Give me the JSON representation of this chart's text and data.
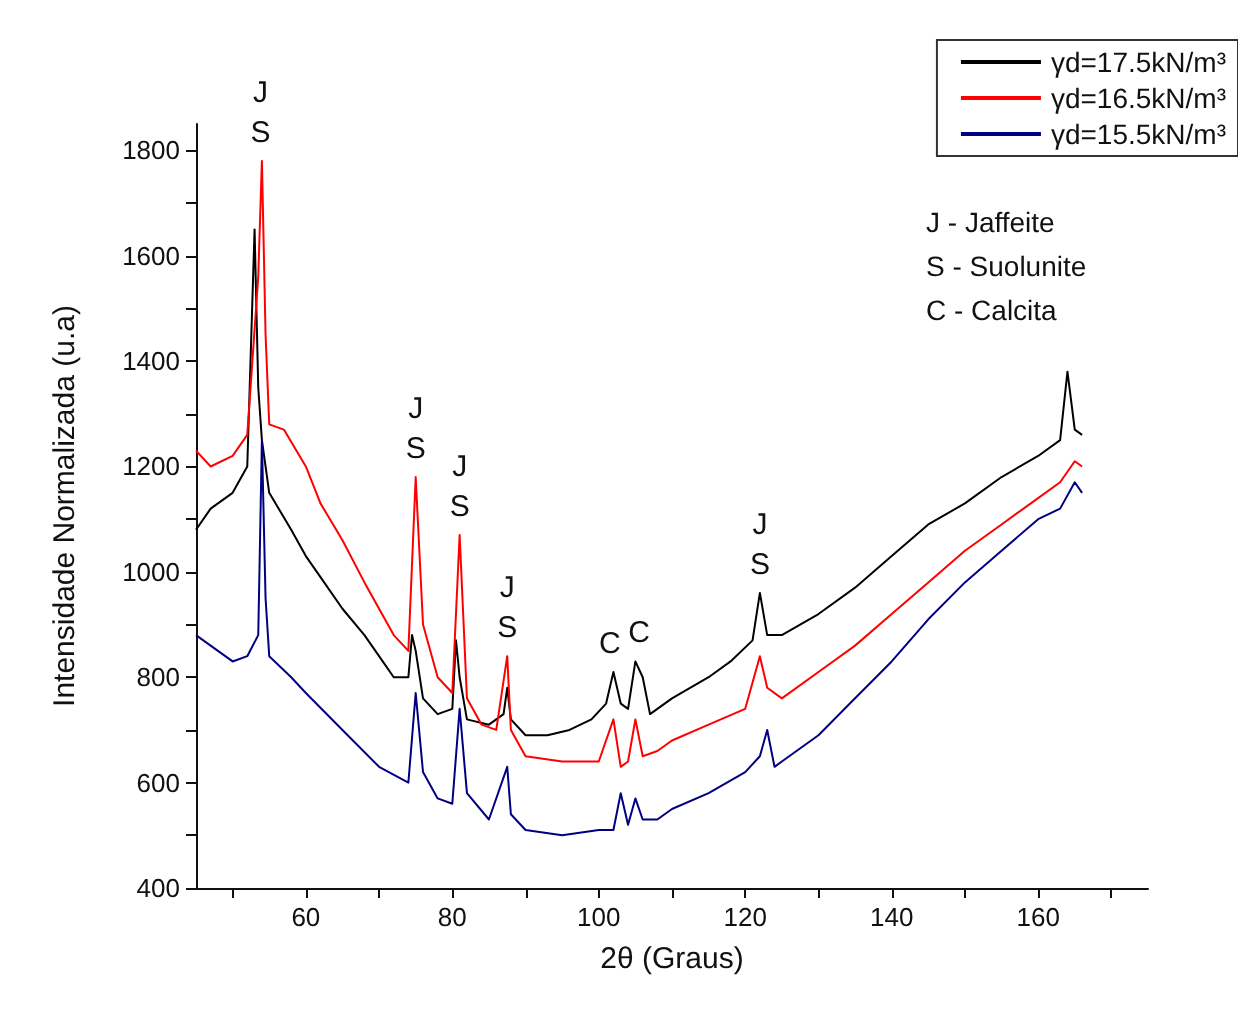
{
  "chart_data": {
    "type": "line",
    "xlabel": "2θ (Graus)",
    "ylabel": "Intensidade Normalizada (u.a)",
    "xlim": [
      45,
      175
    ],
    "xticks": [
      {
        "value": 50,
        "label": null
      },
      60,
      {
        "value": 70,
        "label": null
      },
      80,
      {
        "value": 90,
        "label": null
      },
      100,
      {
        "value": 110,
        "label": null
      },
      120,
      {
        "value": 130,
        "label": null
      },
      140,
      {
        "value": 150,
        "label": null
      },
      160,
      {
        "value": 170,
        "label": null
      }
    ],
    "ylim": [
      400,
      1850
    ],
    "yticks": [
      400,
      {
        "value": 500,
        "label": null
      },
      600,
      {
        "value": 700,
        "label": null
      },
      800,
      {
        "value": 900,
        "label": null
      },
      1000,
      {
        "value": 1100,
        "label": null
      },
      1200,
      {
        "value": 1300,
        "label": null
      },
      1400,
      {
        "value": 1500,
        "label": null
      },
      1600,
      {
        "value": 1700,
        "label": null
      },
      1800
    ],
    "grid": false,
    "legend": "top right",
    "marker": "none",
    "line_style": "solid",
    "series": [
      {
        "name": "γd=17.5kN/m³",
        "color": "#000000",
        "x": [
          45,
          47,
          50,
          52,
          53,
          53.5,
          54,
          55,
          58,
          60,
          62,
          65,
          68,
          70,
          72,
          74,
          74.5,
          75,
          76,
          78,
          80,
          80.5,
          81,
          82,
          85,
          87,
          87.5,
          88,
          90,
          93,
          96,
          99,
          101,
          102,
          103,
          104,
          105,
          106,
          107,
          110,
          115,
          118,
          121,
          122,
          123,
          125,
          130,
          135,
          140,
          145,
          150,
          155,
          160,
          163,
          164,
          165,
          166
        ],
        "values": [
          1080,
          1120,
          1150,
          1200,
          1650,
          1350,
          1250,
          1150,
          1080,
          1030,
          990,
          930,
          880,
          840,
          800,
          800,
          880,
          850,
          760,
          730,
          740,
          870,
          800,
          720,
          710,
          730,
          780,
          720,
          690,
          690,
          700,
          720,
          750,
          810,
          750,
          740,
          830,
          800,
          730,
          760,
          800,
          830,
          870,
          960,
          880,
          880,
          920,
          970,
          1030,
          1090,
          1130,
          1180,
          1220,
          1250,
          1380,
          1270,
          1260
        ]
      },
      {
        "name": "γd=16.5kN/m³",
        "color": "#ff0000",
        "x": [
          45,
          47,
          50,
          52,
          53.5,
          54,
          54.5,
          55,
          57,
          60,
          62,
          65,
          68,
          70,
          72,
          74,
          75,
          76,
          78,
          80,
          81,
          82,
          84,
          86,
          87.5,
          88,
          90,
          95,
          100,
          102,
          103,
          104,
          105,
          106,
          108,
          110,
          115,
          120,
          122,
          123,
          125,
          130,
          135,
          140,
          145,
          150,
          155,
          160,
          163,
          165,
          166
        ],
        "values": [
          1230,
          1200,
          1220,
          1260,
          1560,
          1780,
          1450,
          1280,
          1270,
          1200,
          1130,
          1060,
          980,
          930,
          880,
          850,
          1180,
          900,
          800,
          770,
          1070,
          760,
          710,
          700,
          840,
          700,
          650,
          640,
          640,
          720,
          630,
          640,
          720,
          650,
          660,
          680,
          710,
          740,
          840,
          780,
          760,
          810,
          860,
          920,
          980,
          1040,
          1090,
          1140,
          1170,
          1210,
          1200
        ]
      },
      {
        "name": "γd=15.5kN/m³",
        "color": "#000080",
        "x": [
          45,
          47,
          50,
          52,
          53.5,
          54,
          54.5,
          55,
          58,
          60,
          65,
          70,
          74,
          75,
          76,
          78,
          80,
          81,
          82,
          85,
          87.5,
          88,
          90,
          95,
          100,
          102,
          103,
          104,
          105,
          106,
          108,
          110,
          115,
          120,
          122,
          123,
          124,
          125,
          130,
          135,
          140,
          145,
          150,
          155,
          160,
          163,
          165,
          166
        ],
        "values": [
          880,
          860,
          830,
          840,
          880,
          1250,
          950,
          840,
          800,
          770,
          700,
          630,
          600,
          770,
          620,
          570,
          560,
          740,
          580,
          530,
          630,
          540,
          510,
          500,
          510,
          510,
          580,
          520,
          570,
          530,
          530,
          550,
          580,
          620,
          650,
          700,
          630,
          640,
          690,
          760,
          830,
          910,
          980,
          1040,
          1100,
          1120,
          1170,
          1150
        ]
      }
    ],
    "annotations": [
      {
        "text": "J\nS",
        "x": 53.8,
        "y": 1780
      },
      {
        "text": "J\nS",
        "x": 75,
        "y": 1180
      },
      {
        "text": "J\nS",
        "x": 81,
        "y": 1070
      },
      {
        "text": "J\nS",
        "x": 87.5,
        "y": 840
      },
      {
        "text": "J\nS",
        "x": 122,
        "y": 960
      },
      {
        "text": "C",
        "x": 101.5,
        "y": 810
      },
      {
        "text": "C",
        "x": 105.5,
        "y": 830
      },
      "J - Jaffeite\nS - Suolunite\nC - Calcita"
    ]
  }
}
